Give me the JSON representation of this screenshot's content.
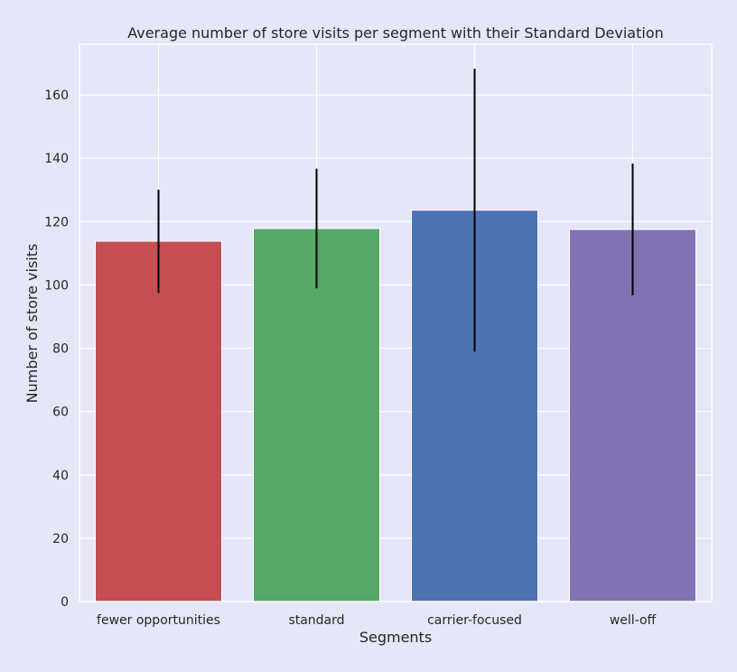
{
  "chart_data": {
    "type": "bar",
    "title": "Average number of store visits per segment with their Standard Deviation",
    "xlabel": "Segments",
    "ylabel": "Number of store visits",
    "categories": [
      "fewer opportunities",
      "standard",
      "carrier-focused",
      "well-off"
    ],
    "values": [
      113.8,
      117.8,
      123.6,
      117.5
    ],
    "error": [
      16.3,
      18.9,
      44.7,
      20.8
    ],
    "colors": [
      "#c44e52",
      "#55a868",
      "#4c72b0",
      "#8172b2"
    ],
    "error_color": "#000000",
    "ylim": [
      0,
      176
    ],
    "yticks": [
      0,
      20,
      40,
      60,
      80,
      100,
      120,
      140,
      160
    ],
    "grid": true,
    "background": "#e5e6f8",
    "grid_color": "#ffffff"
  }
}
